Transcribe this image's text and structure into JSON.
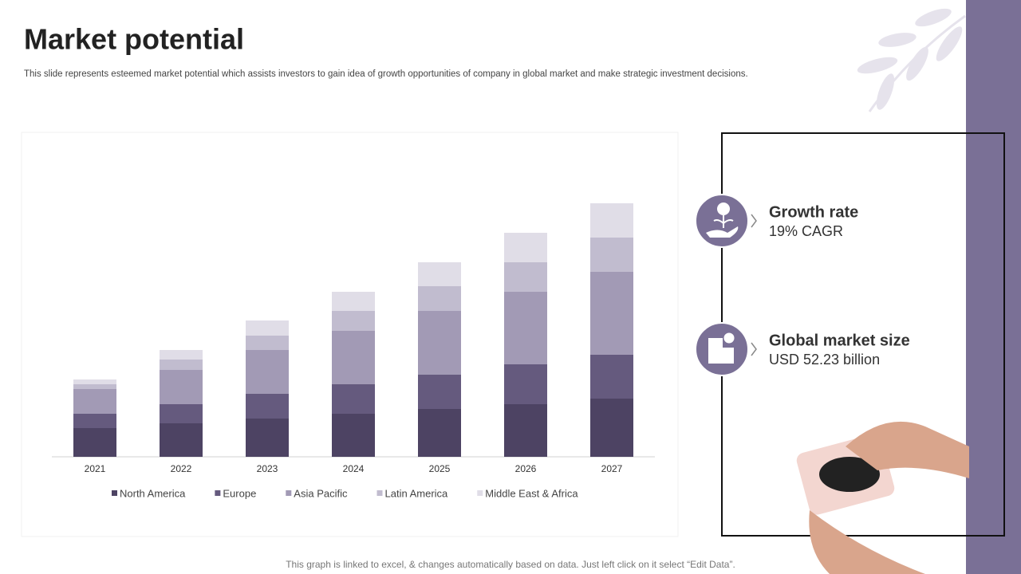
{
  "header": {
    "title": "Market potential",
    "subtitle": "This slide represents esteemed market potential which assists investors to gain idea of growth opportunities of company in global market and make strategic investment decisions."
  },
  "chart_data": {
    "type": "stacked_bar",
    "categories": [
      "2021",
      "2022",
      "2023",
      "2024",
      "2025",
      "2026",
      "2027"
    ],
    "series": [
      {
        "name": "North America",
        "color": "#4d4363",
        "values": [
          36,
          42,
          48,
          54,
          60,
          66,
          73
        ]
      },
      {
        "name": "Europe",
        "color": "#655a7e",
        "values": [
          18,
          24,
          31,
          37,
          43,
          50,
          55
        ]
      },
      {
        "name": "Asia Pacific",
        "color": "#a29ab5",
        "values": [
          31,
          43,
          55,
          67,
          80,
          91,
          104
        ]
      },
      {
        "name": "Latin America",
        "color": "#c1bccf",
        "values": [
          6,
          13,
          18,
          25,
          31,
          37,
          43
        ]
      },
      {
        "name": "Middle East & Africa",
        "color": "#e0dde7",
        "values": [
          6,
          12,
          19,
          24,
          30,
          37,
          43
        ]
      }
    ],
    "ylim": [
      0,
      350
    ],
    "legend": "bottom"
  },
  "metrics": [
    {
      "label": "Growth rate",
      "value": "19% CAGR"
    },
    {
      "label": "Global market size",
      "value": "USD 52.23 billion"
    }
  ],
  "footer": {
    "note": "This graph is linked to excel, & changes automatically based on data. Just left click on it select “Edit Data”."
  }
}
